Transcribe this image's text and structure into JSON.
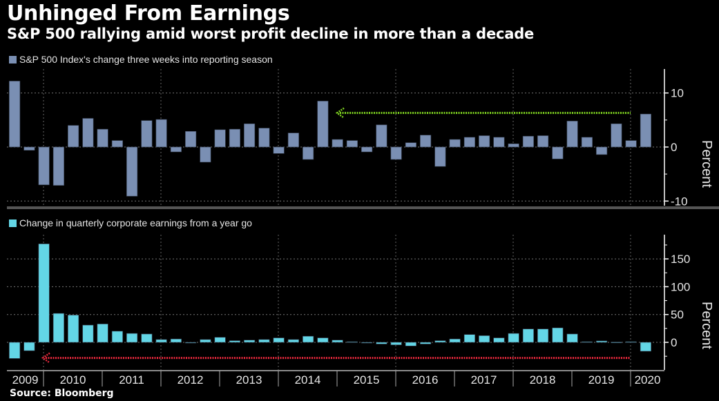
{
  "title": "Unhinged From Earnings",
  "subtitle": "S&P 500 rallying amid worst profit decline in more than a decade",
  "source": "Source: Bloomberg",
  "colors": {
    "background": "#000000",
    "sp500_bar": "#7a8fb3",
    "earnings_bar": "#63d6e6",
    "green_arrow": "#7fd321",
    "red_arrow": "#e8283c"
  },
  "chart_data": [
    {
      "type": "bar",
      "panel": "top",
      "legend": "S&P 500 Index's change three weeks into reporting season",
      "ylabel": "Percent",
      "ylim": [
        -11,
        14
      ],
      "yticks": [
        -10,
        0,
        10
      ],
      "grid": true,
      "x_year_labels": [
        "2009",
        "2010",
        "2011",
        "2012",
        "2013",
        "2014",
        "2015",
        "2016",
        "2017",
        "2018",
        "2019",
        "2020"
      ],
      "categories": [
        "2009Q1",
        "2009Q2",
        "2009Q3",
        "2009Q4",
        "2010Q1",
        "2010Q2",
        "2010Q3",
        "2010Q4",
        "2011Q1",
        "2011Q2",
        "2011Q3",
        "2011Q4",
        "2012Q1",
        "2012Q2",
        "2012Q3",
        "2012Q4",
        "2013Q1",
        "2013Q2",
        "2013Q3",
        "2013Q4",
        "2014Q1",
        "2014Q2",
        "2014Q3",
        "2014Q4",
        "2015Q1",
        "2015Q2",
        "2015Q3",
        "2015Q4",
        "2016Q1",
        "2016Q2",
        "2016Q3",
        "2016Q4",
        "2017Q1",
        "2017Q2",
        "2017Q3",
        "2017Q4",
        "2018Q1",
        "2018Q2",
        "2018Q3",
        "2018Q4",
        "2019Q1",
        "2019Q2",
        "2019Q3",
        "2019Q4"
      ],
      "values": [
        12.2,
        -0.6,
        -7.0,
        -7.1,
        4.0,
        5.3,
        3.3,
        1.2,
        -9.1,
        4.9,
        5.1,
        -0.9,
        2.9,
        -2.8,
        3.2,
        3.3,
        4.3,
        3.5,
        -1.2,
        2.6,
        -2.3,
        8.5,
        1.4,
        1.2,
        -0.9,
        4.1,
        -2.3,
        0.8,
        2.2,
        -3.6,
        1.4,
        1.8,
        2.1,
        1.8,
        0.6,
        2.0,
        2.1,
        -2.2,
        4.8,
        1.8,
        -1.4,
        4.3,
        1.2,
        6.1
      ],
      "annotation": {
        "type": "dotted-arrow",
        "color": "green",
        "level": 6.3,
        "from": "2020Q1",
        "to": "2014Q3"
      }
    },
    {
      "type": "bar",
      "panel": "bottom",
      "legend": "Change in quarterly corporate earnings from a year go",
      "ylabel": "Percent",
      "ylim": [
        -50,
        190
      ],
      "yticks": [
        0,
        50,
        100,
        150
      ],
      "grid": true,
      "categories": [
        "2009Q1",
        "2009Q2",
        "2009Q3",
        "2009Q4",
        "2010Q1",
        "2010Q2",
        "2010Q3",
        "2010Q4",
        "2011Q1",
        "2011Q2",
        "2011Q3",
        "2011Q4",
        "2012Q1",
        "2012Q2",
        "2012Q3",
        "2012Q4",
        "2013Q1",
        "2013Q2",
        "2013Q3",
        "2013Q4",
        "2014Q1",
        "2014Q2",
        "2014Q3",
        "2014Q4",
        "2015Q1",
        "2015Q2",
        "2015Q3",
        "2015Q4",
        "2016Q1",
        "2016Q2",
        "2016Q3",
        "2016Q4",
        "2017Q1",
        "2017Q2",
        "2017Q3",
        "2017Q4",
        "2018Q1",
        "2018Q2",
        "2018Q3",
        "2018Q4",
        "2019Q1",
        "2019Q2",
        "2019Q3",
        "2019Q4"
      ],
      "values": [
        -29,
        -15,
        177,
        52,
        49,
        31,
        33,
        20,
        16,
        15,
        5,
        6,
        -1,
        5,
        9,
        3,
        4,
        5,
        8,
        5,
        11,
        8,
        4,
        1,
        -0.5,
        -3,
        -4.5,
        -6.5,
        -3,
        3,
        6,
        14,
        12,
        8,
        16,
        24,
        24,
        26,
        15,
        1,
        2.5,
        0.5,
        1,
        -16
      ],
      "annotation": {
        "type": "dotted-arrow",
        "color": "red",
        "level": -28,
        "from": "2020Q1",
        "to": "2009Q4"
      }
    }
  ]
}
